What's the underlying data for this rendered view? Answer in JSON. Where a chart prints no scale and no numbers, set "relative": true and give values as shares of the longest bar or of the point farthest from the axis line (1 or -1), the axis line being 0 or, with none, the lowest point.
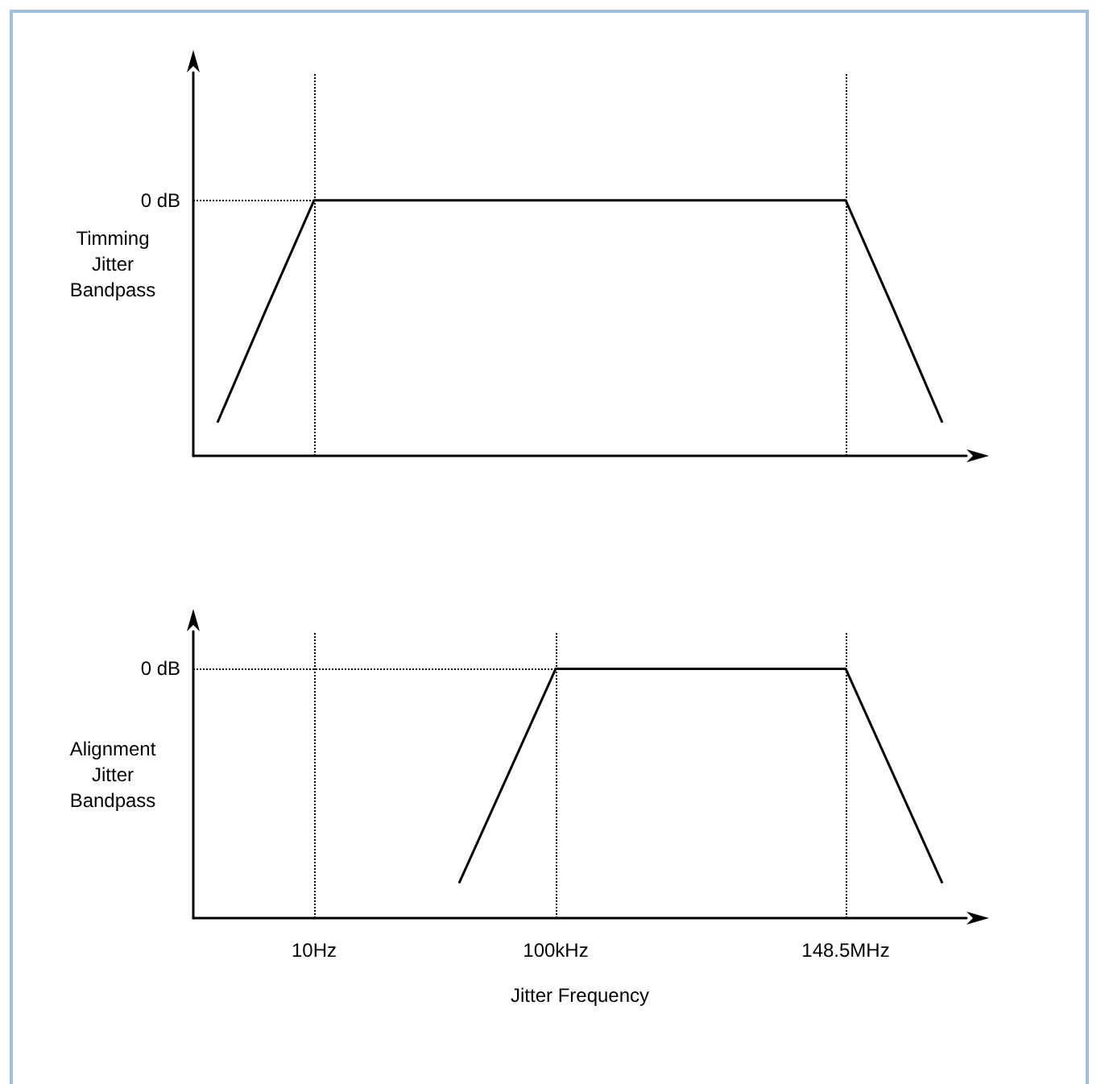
{
  "chart_data": [
    {
      "type": "line",
      "relative": true,
      "ylabel": "Timming Jitter Bandpass",
      "categories": [
        null,
        null,
        null,
        null,
        null,
        null,
        null,
        null,
        null,
        null,
        null,
        null,
        null,
        null,
        null,
        null
      ],
      "tick_labels": false,
      "marker": "none",
      "line_style": "solid",
      "series": [
        {
          "color": "#000000",
          "values": [
            0.13,
            0.57,
            1,
            1,
            1,
            1,
            1,
            1,
            1,
            1,
            1,
            1,
            1,
            1,
            0.57,
            0.13
          ]
        }
      ],
      "ref_lines": [
        {
          "axis": "y",
          "value": 1,
          "label": "0 dB",
          "line_style": "dotted",
          "color": "#000000"
        }
      ]
    },
    {
      "type": "line",
      "relative": true,
      "ylabel": "Alignment Jitter Bandpass",
      "xlabel": "Jitter Frequency",
      "categories": [
        null,
        null,
        "10Hz",
        null,
        null,
        null,
        null,
        "100kHz",
        null,
        null,
        null,
        null,
        null,
        "148.5MHz",
        null,
        null
      ],
      "tick_labels": "x",
      "marker": "none",
      "line_style": "solid",
      "series": [
        {
          "color": "#000000",
          "values": [
            null,
            null,
            null,
            null,
            null,
            0.14,
            0.57,
            1,
            1,
            1,
            1,
            1,
            1,
            1,
            0.57,
            0.14
          ]
        }
      ],
      "ref_lines": [
        {
          "axis": "y",
          "value": 1,
          "label": "0 dB",
          "line_style": "dotted",
          "color": "#000000"
        },
        {
          "axis": "x",
          "value": "10Hz",
          "label": null,
          "line_style": "dotted",
          "color": "#000000"
        },
        {
          "axis": "x",
          "value": "100kHz",
          "label": null,
          "line_style": "dotted",
          "color": "#000000"
        },
        {
          "axis": "x",
          "value": "148.5MHz",
          "label": null,
          "line_style": "dotted",
          "color": "#000000"
        }
      ]
    }
  ]
}
